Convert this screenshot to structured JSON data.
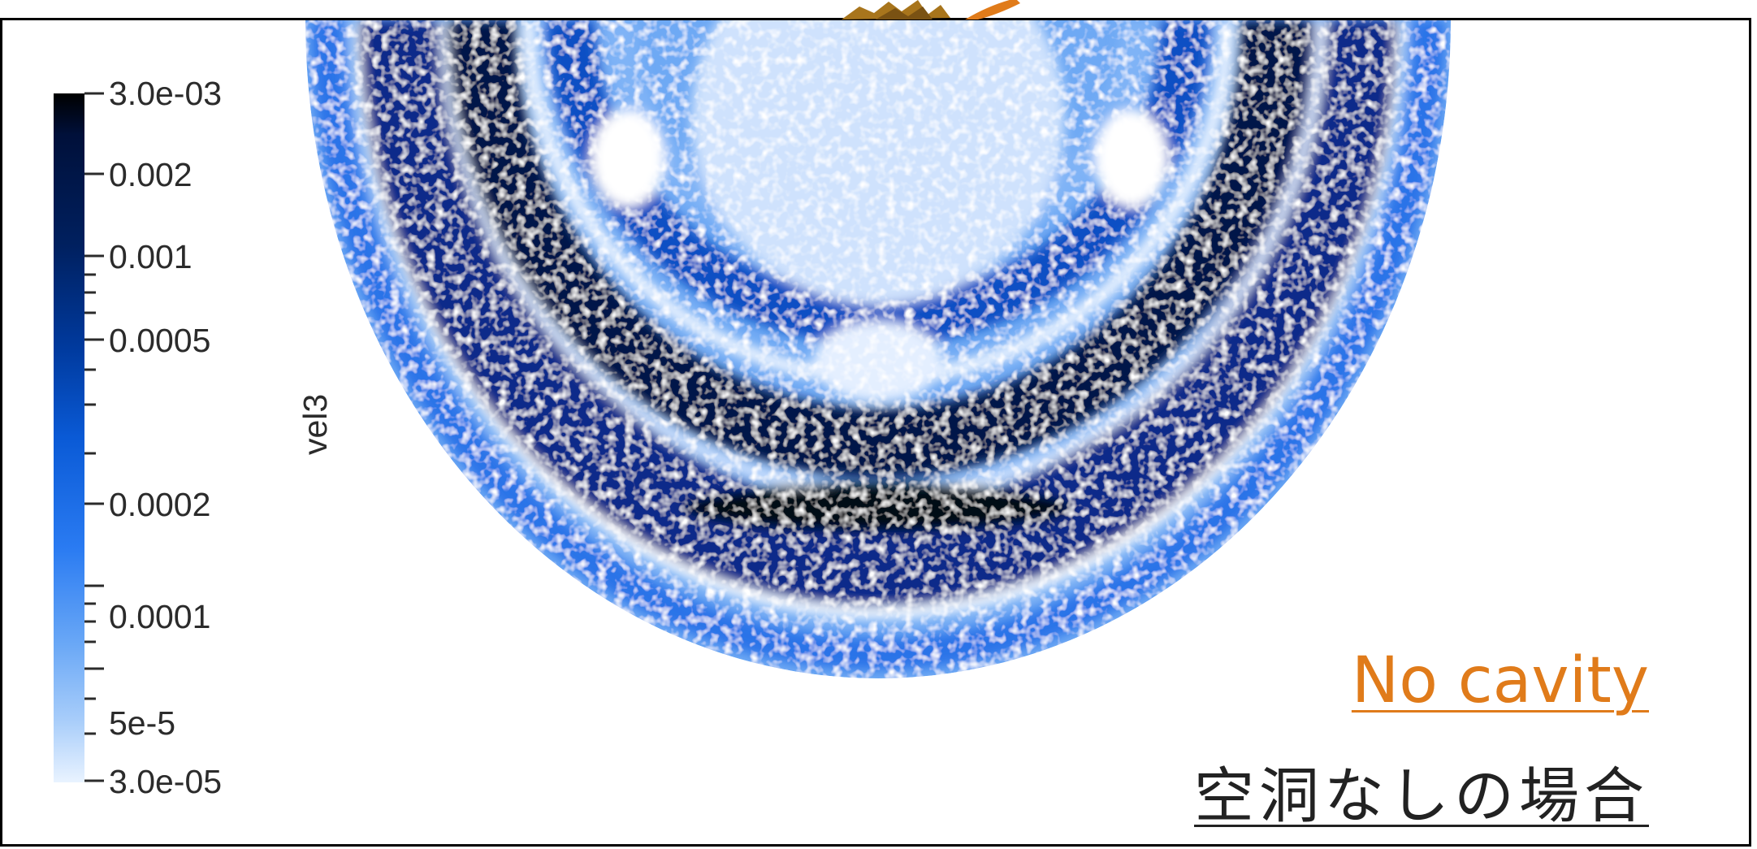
{
  "colorbar": {
    "title": "vel3",
    "scale": "log",
    "range": [
      "3.0e-05",
      "3.0e-03"
    ],
    "tick_labels": [
      "3.0e-03",
      "0.002",
      "0.001",
      "0.0005",
      "0.0002",
      "0.0001",
      "5e-5",
      "3.0e-05"
    ],
    "colors": [
      "#000000",
      "#00205f",
      "#0a5ad6",
      "#6aa8f6",
      "#e9f3ff"
    ]
  },
  "caption": {
    "english": "No cavity",
    "japanese": "空洞なしの場合",
    "english_color": "#e07b1a"
  },
  "icons": [
    "splash-icon"
  ]
}
